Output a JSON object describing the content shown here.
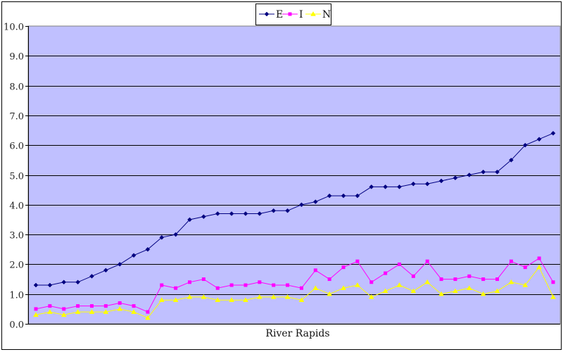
{
  "chart_data": {
    "type": "line",
    "title": "",
    "xlabel": "River Rapids",
    "ylabel": "",
    "ylim": [
      0,
      10
    ],
    "y_ticks": [
      "0.0",
      "1.0",
      "2.0",
      "3.0",
      "4.0",
      "5.0",
      "6.0",
      "7.0",
      "8.0",
      "9.0",
      "10.0"
    ],
    "grid": true,
    "legend_position": "top-center",
    "plot_background": "#C0C0FF",
    "series": [
      {
        "name": "E",
        "color": "#000080",
        "marker": "diamond",
        "values": [
          1.3,
          1.3,
          1.4,
          1.4,
          1.6,
          1.8,
          2.0,
          2.3,
          2.5,
          2.9,
          3.0,
          3.5,
          3.6,
          3.7,
          3.7,
          3.7,
          3.7,
          3.8,
          3.8,
          4.0,
          4.1,
          4.3,
          4.3,
          4.3,
          4.6,
          4.6,
          4.6,
          4.7,
          4.7,
          4.8,
          4.9,
          5.0,
          5.1,
          5.1,
          5.5,
          6.0,
          6.2,
          6.4
        ]
      },
      {
        "name": "I",
        "color": "#FF00FF",
        "marker": "square",
        "values": [
          0.5,
          0.6,
          0.5,
          0.6,
          0.6,
          0.6,
          0.7,
          0.6,
          0.4,
          1.3,
          1.2,
          1.4,
          1.5,
          1.2,
          1.3,
          1.3,
          1.4,
          1.3,
          1.3,
          1.2,
          1.8,
          1.5,
          1.9,
          2.1,
          1.4,
          1.7,
          2.0,
          1.6,
          2.1,
          1.5,
          1.5,
          1.6,
          1.5,
          1.5,
          2.1,
          1.9,
          2.2,
          1.4
        ]
      },
      {
        "name": "N",
        "color": "#FFFF00",
        "marker": "triangle",
        "values": [
          0.3,
          0.4,
          0.3,
          0.4,
          0.4,
          0.4,
          0.5,
          0.4,
          0.2,
          0.8,
          0.8,
          0.9,
          0.9,
          0.8,
          0.8,
          0.8,
          0.9,
          0.9,
          0.9,
          0.8,
          1.2,
          1.0,
          1.2,
          1.3,
          0.9,
          1.1,
          1.3,
          1.1,
          1.4,
          1.0,
          1.1,
          1.2,
          1.0,
          1.1,
          1.4,
          1.3,
          1.9,
          0.9
        ]
      }
    ]
  }
}
